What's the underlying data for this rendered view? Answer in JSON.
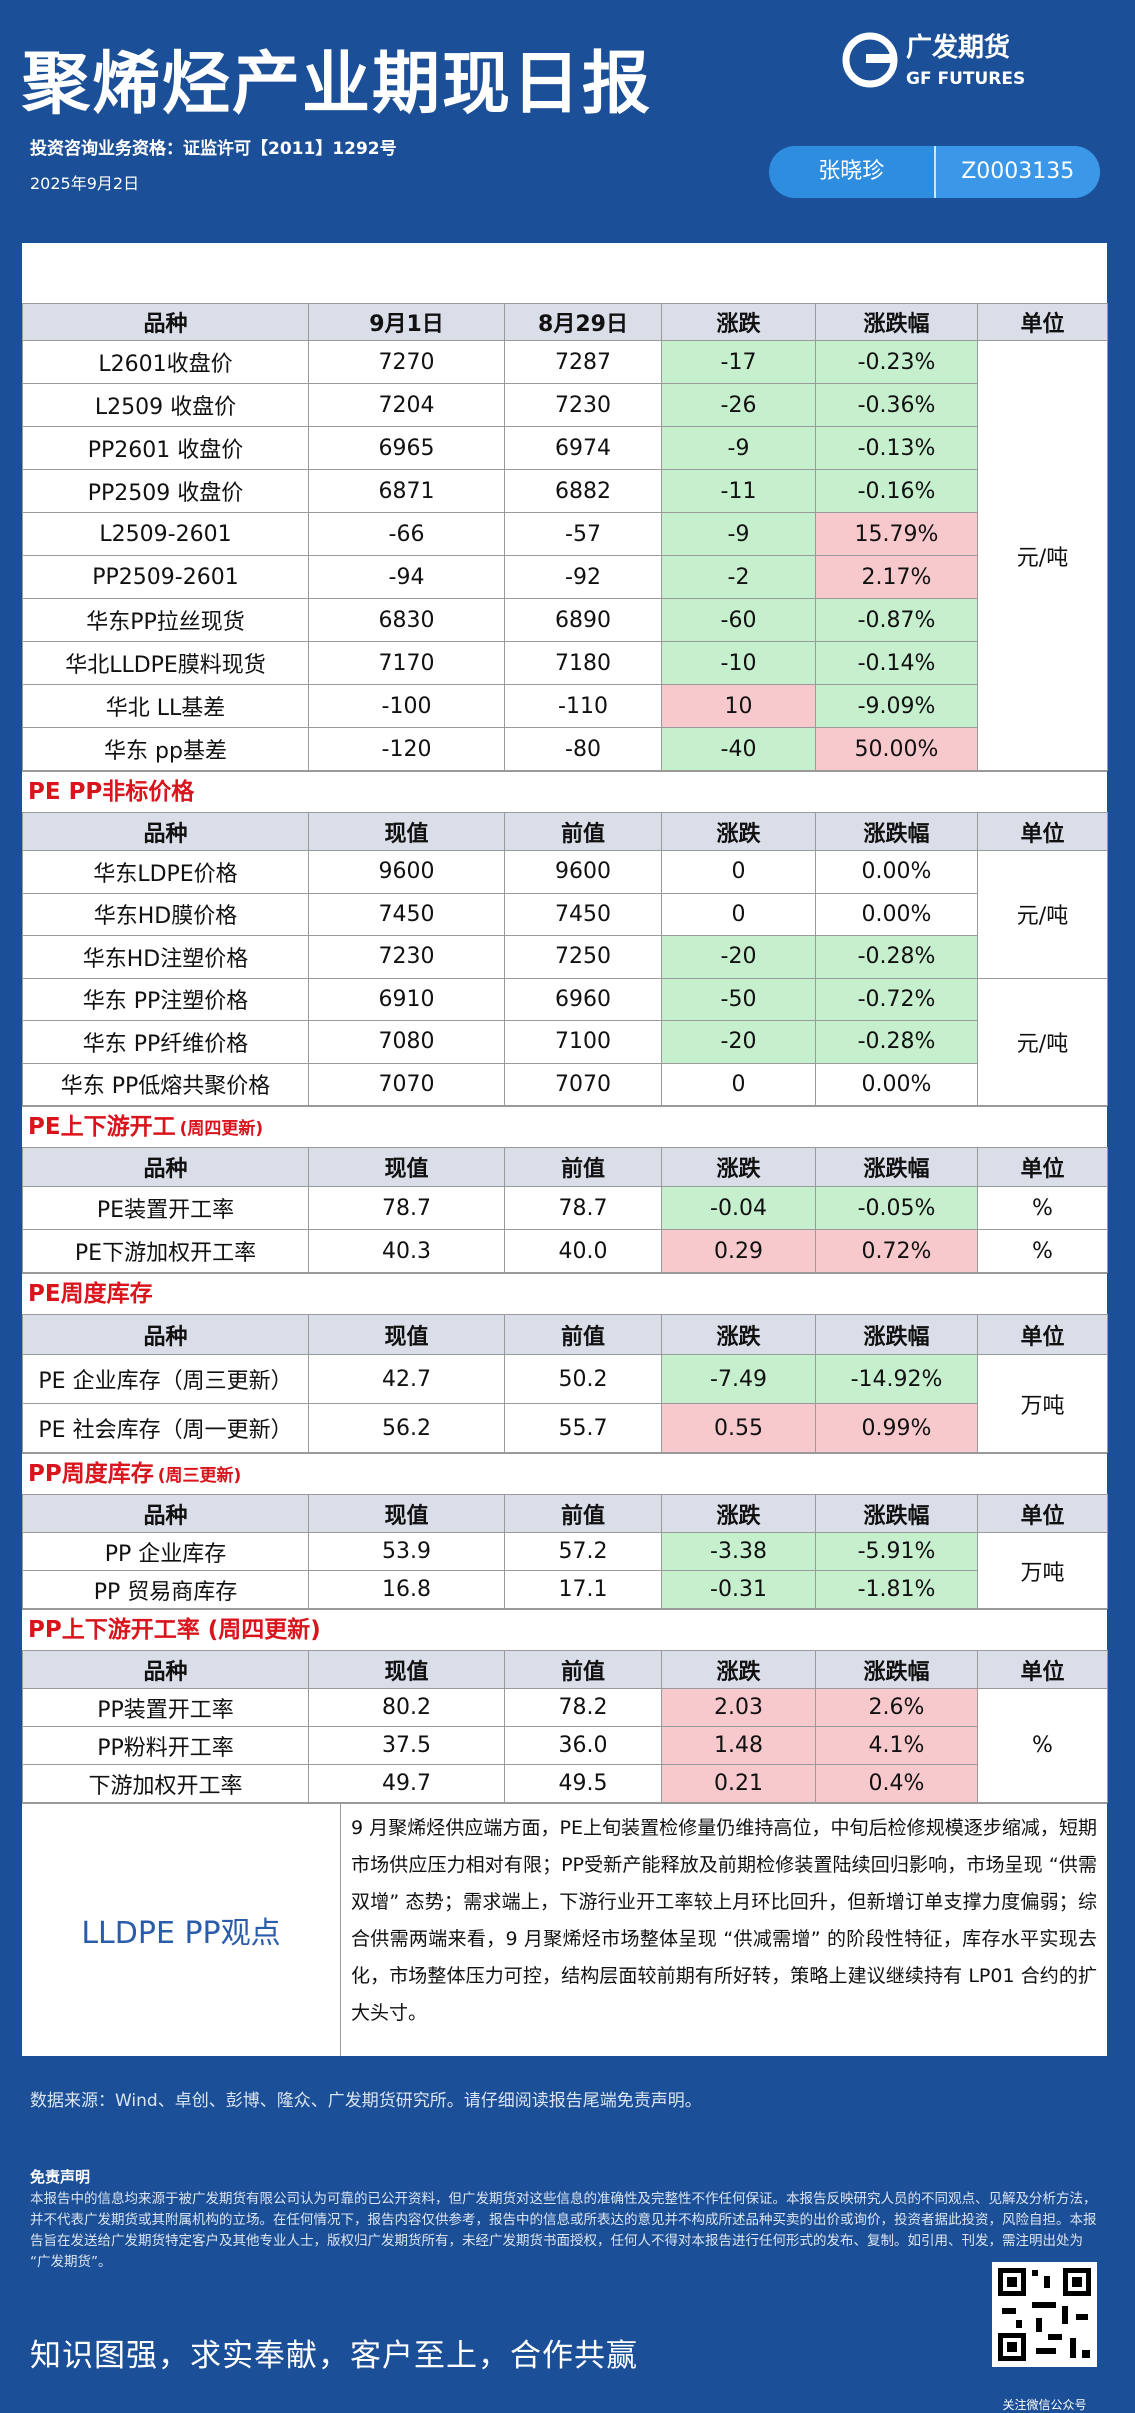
{
  "header": {
    "title": "聚烯烃产业期现日报",
    "logo_cn": "广发期货",
    "logo_en": "GF FUTURES",
    "license": "投资咨询业务资格：证监许可【2011】1292号",
    "date": "2025年9月2日",
    "analyst": "张晓珍",
    "analyst_id": "Z0003135"
  },
  "tables": [
    {
      "columns": [
        "品种",
        "9月1日",
        "8月29日",
        "涨跌",
        "涨跌幅",
        "单位"
      ],
      "rows": [
        {
          "name": "L2601收盘价",
          "current": "7270",
          "previous": "7287",
          "change": "-17",
          "pct": "-0.23%",
          "change_bg": "#c6efce",
          "pct_bg": "#c6efce"
        },
        {
          "name": "L2509 收盘价",
          "current": "7204",
          "previous": "7230",
          "change": "-26",
          "pct": "-0.36%",
          "change_bg": "#c6efce",
          "pct_bg": "#c6efce"
        },
        {
          "name": "PP2601 收盘价",
          "current": "6965",
          "previous": "6974",
          "change": "-9",
          "pct": "-0.13%",
          "change_bg": "#c6efce",
          "pct_bg": "#c6efce"
        },
        {
          "name": "PP2509 收盘价",
          "current": "6871",
          "previous": "6882",
          "change": "-11",
          "pct": "-0.16%",
          "change_bg": "#c6efce",
          "pct_bg": "#c6efce"
        },
        {
          "name": "L2509-2601",
          "current": "-66",
          "previous": "-57",
          "change": "-9",
          "pct": "15.79%",
          "change_bg": "#c6efce",
          "pct_bg": "#f8c9cc"
        },
        {
          "name": "PP2509-2601",
          "current": "-94",
          "previous": "-92",
          "change": "-2",
          "pct": "2.17%",
          "change_bg": "#c6efce",
          "pct_bg": "#f8c9cc"
        },
        {
          "name": "华东PP拉丝现货",
          "current": "6830",
          "previous": "6890",
          "change": "-60",
          "pct": "-0.87%",
          "change_bg": "#c6efce",
          "pct_bg": "#c6efce"
        },
        {
          "name": "华北LLDPE膜料现货",
          "current": "7170",
          "previous": "7180",
          "change": "-10",
          "pct": "-0.14%",
          "change_bg": "#c6efce",
          "pct_bg": "#c6efce"
        },
        {
          "name": "华北 LL基差",
          "current": "-100",
          "previous": "-110",
          "change": "10",
          "pct": "-9.09%",
          "change_bg": "#f8c9cc",
          "pct_bg": "#c6efce"
        },
        {
          "name": "华东 pp基差",
          "current": "-120",
          "previous": "-80",
          "change": "-40",
          "pct": "50.00%",
          "change_bg": "#c6efce",
          "pct_bg": "#f8c9cc"
        }
      ],
      "units": [
        {
          "text": "元/吨",
          "span": 10
        }
      ]
    },
    {
      "title": "PE PP非标价格",
      "columns": [
        "品种",
        "现值",
        "前值",
        "涨跌",
        "涨跌幅",
        "单位"
      ],
      "rows": [
        {
          "name": "华东LDPE价格",
          "current": "9600",
          "previous": "9600",
          "change": "0",
          "pct": "0.00%",
          "change_bg": null,
          "pct_bg": null
        },
        {
          "name": "华东HD膜价格",
          "current": "7450",
          "previous": "7450",
          "change": "0",
          "pct": "0.00%",
          "change_bg": null,
          "pct_bg": null
        },
        {
          "name": "华东HD注塑价格",
          "current": "7230",
          "previous": "7250",
          "change": "-20",
          "pct": "-0.28%",
          "change_bg": "#c6efce",
          "pct_bg": "#c6efce"
        },
        {
          "name": "华东 PP注塑价格",
          "current": "6910",
          "previous": "6960",
          "change": "-50",
          "pct": "-0.72%",
          "change_bg": "#c6efce",
          "pct_bg": "#c6efce"
        },
        {
          "name": "华东 PP纤维价格",
          "current": "7080",
          "previous": "7100",
          "change": "-20",
          "pct": "-0.28%",
          "change_bg": "#c6efce",
          "pct_bg": "#c6efce"
        },
        {
          "name": "华东 PP低熔共聚价格",
          "current": "7070",
          "previous": "7070",
          "change": "0",
          "pct": "0.00%",
          "change_bg": null,
          "pct_bg": null
        }
      ],
      "units": [
        {
          "text": "元/吨",
          "span": 3
        },
        {
          "text": "元/吨",
          "span": 3
        }
      ]
    },
    {
      "title": "PE上下游开工",
      "note": "(周四更新)",
      "columns": [
        "品种",
        "现值",
        "前值",
        "涨跌",
        "涨跌幅",
        "单位"
      ],
      "rows": [
        {
          "name": "PE装置开工率",
          "current": "78.7",
          "previous": "78.7",
          "change": "-0.04",
          "pct": "-0.05%",
          "change_bg": "#c6efce",
          "pct_bg": "#c6efce"
        },
        {
          "name": "PE下游加权开工率",
          "current": "40.3",
          "previous": "40.0",
          "change": "0.29",
          "pct": "0.72%",
          "change_bg": "#f8c9cc",
          "pct_bg": "#f8c9cc"
        }
      ],
      "units": [
        {
          "text": "%",
          "span": 1
        },
        {
          "text": "%",
          "span": 1
        }
      ]
    },
    {
      "title": "PE周度库存",
      "columns": [
        "品种",
        "现值",
        "前值",
        "涨跌",
        "涨跌幅",
        "单位"
      ],
      "rows": [
        {
          "name": "PE 企业库存（周三更新）",
          "current": "42.7",
          "previous": "50.2",
          "change": "-7.49",
          "pct": "-14.92%",
          "change_bg": "#c6efce",
          "pct_bg": "#c6efce"
        },
        {
          "name": "PE 社会库存（周一更新）",
          "current": "56.2",
          "previous": "55.7",
          "change": "0.55",
          "pct": "0.99%",
          "change_bg": "#f8c9cc",
          "pct_bg": "#f8c9cc"
        }
      ],
      "units": [
        {
          "text": "万吨",
          "span": 2
        }
      ]
    },
    {
      "title": "PP周度库存",
      "note": "(周三更新)",
      "columns": [
        "品种",
        "现值",
        "前值",
        "涨跌",
        "涨跌幅",
        "单位"
      ],
      "rows": [
        {
          "name": "PP 企业库存",
          "current": "53.9",
          "previous": "57.2",
          "change": "-3.38",
          "pct": "-5.91%",
          "change_bg": "#c6efce",
          "pct_bg": "#c6efce"
        },
        {
          "name": "PP 贸易商库存",
          "current": "16.8",
          "previous": "17.1",
          "change": "-0.31",
          "pct": "-1.81%",
          "change_bg": "#c6efce",
          "pct_bg": "#c6efce"
        }
      ],
      "units": [
        {
          "text": "万吨",
          "span": 2
        }
      ]
    },
    {
      "title": "PP上下游开工率 (周四更新)",
      "columns": [
        "品种",
        "现值",
        "前值",
        "涨跌",
        "涨跌幅",
        "单位"
      ],
      "rows": [
        {
          "name": "PP装置开工率",
          "current": "80.2",
          "previous": "78.2",
          "change": "2.03",
          "pct": "2.6%",
          "change_bg": "#f8c9cc",
          "pct_bg": "#f8c9cc"
        },
        {
          "name": "PP粉料开工率",
          "current": "37.5",
          "previous": "36.0",
          "change": "1.48",
          "pct": "4.1%",
          "change_bg": "#f8c9cc",
          "pct_bg": "#f8c9cc"
        },
        {
          "name": "下游加权开工率",
          "current": "49.7",
          "previous": "49.5",
          "change": "0.21",
          "pct": "0.4%",
          "change_bg": "#f8c9cc",
          "pct_bg": "#f8c9cc"
        }
      ],
      "units": [
        {
          "text": "%",
          "span": 3
        }
      ]
    }
  ],
  "view": {
    "label": "LLDPE  PP观点",
    "text": "9 月聚烯烃供应端方面，PE上旬装置检修量仍维持高位，中旬后检修规模逐步缩减，短期市场供应压力相对有限；PP受新产能释放及前期检修装置陆续回归影响，市场呈现 “供需双增” 态势；需求端上，下游行业开工率较上月环比回升，但新增订单支撑力度偏弱；综合供需两端来看，9 月聚烯烃市场整体呈现 “供减需增” 的阶段性特征，库存水平实现去化，市场整体压力可控，结构层面较前期有所好转，策略上建议继续持有 LP01 合约的扩大头寸。"
  },
  "footer": {
    "source": "数据来源：Wind、卓创、彭博、隆众、广发期货研究所。请仔细阅读报告尾端免责声明。",
    "disclaimer_title": "免责声明",
    "disclaimer": "本报告中的信息均来源于被广发期货有限公司认为可靠的已公开资料，但广发期货对这些信息的准确性及完整性不作任何保证。本报告反映研究人员的不同观点、见解及分析方法，并不代表广发期货或其附属机构的立场。在任何情况下，报告内容仅供参考，报告中的信息或所表达的意见并不构成所述品种买卖的出价或询价，投资者据此投资，风险自担。本报告旨在发送给广发期货特定客户及其他专业人士，版权归广发期货所有，未经广发期货书面授权，任何人不得对本报告进行任何形式的发布、复制。如引用、刊发，需注明出处为“广发期货”。",
    "slogan": "知识图强，求实奉献，客户至上，合作共赢",
    "qr_caption": "关注微信公众号"
  }
}
